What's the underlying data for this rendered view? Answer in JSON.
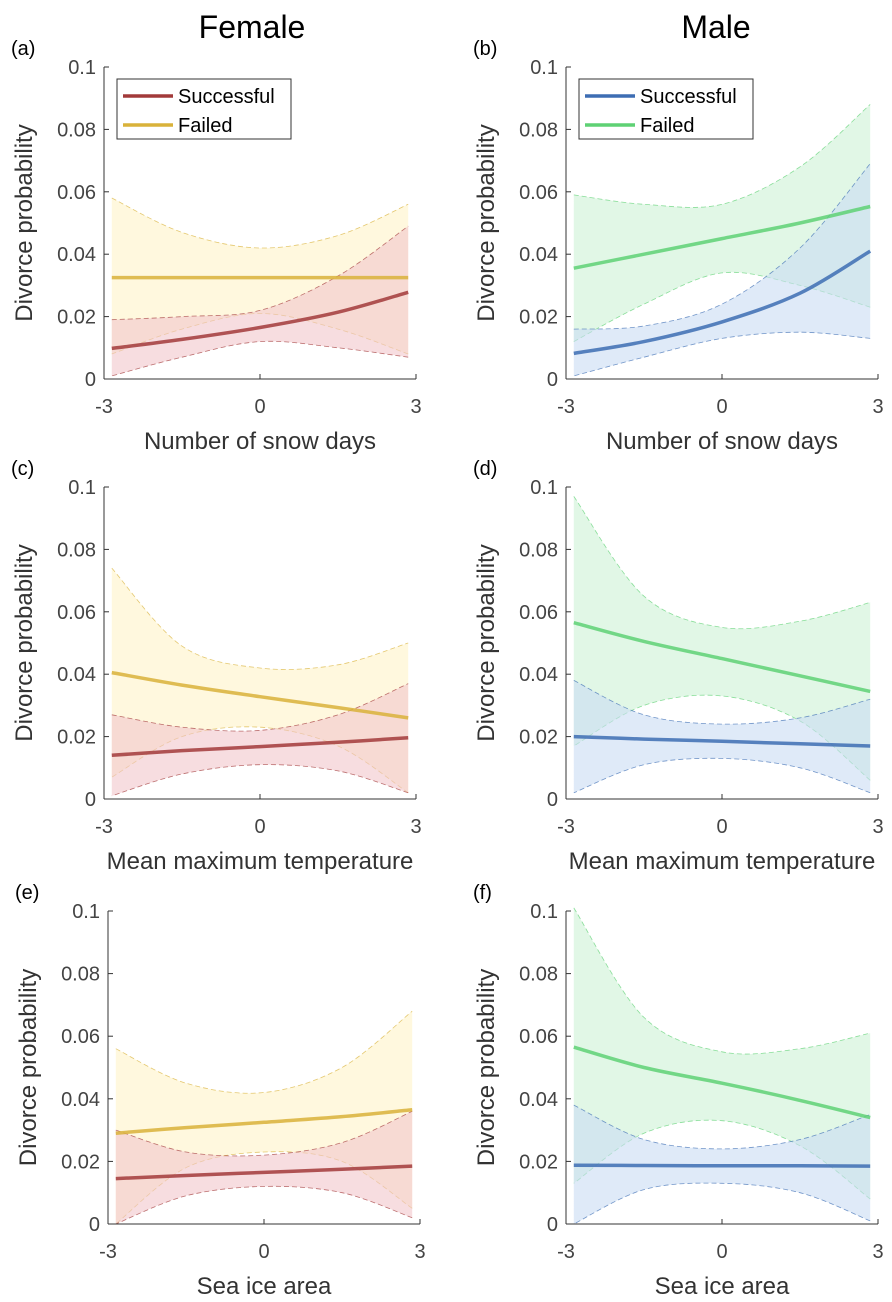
{
  "column_titles": [
    "Female",
    "Male"
  ],
  "colors": {
    "female_successful": "#a23a3a",
    "female_failed": "#d9b23a",
    "male_successful": "#3d6db3",
    "male_failed": "#5ed174",
    "female_successful_band": "#f2c6cc",
    "female_failed_band": "#fff3c8",
    "male_successful_band": "#c9dcf3",
    "male_failed_band": "#cdf2d5"
  },
  "chart_data": [
    {
      "panel": "(a)",
      "type": "line",
      "xlabel": "Number of snow days",
      "ylabel": "Divorce probability",
      "xlim": [
        -3,
        3
      ],
      "ylim": [
        0,
        0.1
      ],
      "xticks": [
        "-3",
        "0",
        "3"
      ],
      "yticks": [
        "0",
        "0.02",
        "0.04",
        "0.06",
        "0.08",
        "0.1"
      ],
      "legend": [
        "Successful",
        "Failed"
      ],
      "series": [
        {
          "name": "Successful",
          "x": [
            -2.85,
            -1.5,
            0,
            1.5,
            2.85
          ],
          "y": [
            0.0098,
            0.0127,
            0.0165,
            0.0214,
            0.0278
          ],
          "lower": [
            0.001,
            0.007,
            0.012,
            0.01,
            0.007
          ],
          "upper": [
            0.019,
            0.02,
            0.022,
            0.033,
            0.049
          ]
        },
        {
          "name": "Failed",
          "x": [
            -2.85,
            -1.5,
            0,
            1.5,
            2.85
          ],
          "y": [
            0.0325,
            0.0325,
            0.0325,
            0.0325,
            0.0325
          ],
          "lower": [
            0.008,
            0.016,
            0.021,
            0.016,
            0.008
          ],
          "upper": [
            0.058,
            0.047,
            0.042,
            0.046,
            0.056
          ]
        }
      ]
    },
    {
      "panel": "(b)",
      "type": "line",
      "xlabel": "Number of snow days",
      "ylabel": "Divorce probability",
      "xlim": [
        -3,
        3
      ],
      "ylim": [
        0,
        0.1
      ],
      "xticks": [
        "-3",
        "0",
        "3"
      ],
      "yticks": [
        "0",
        "0.02",
        "0.04",
        "0.06",
        "0.08",
        "0.1"
      ],
      "legend": [
        "Successful",
        "Failed"
      ],
      "series": [
        {
          "name": "Successful",
          "x": [
            -2.85,
            -1.5,
            0,
            1.5,
            2.85
          ],
          "y": [
            0.0082,
            0.012,
            0.0183,
            0.0275,
            0.041
          ],
          "lower": [
            0.001,
            0.007,
            0.013,
            0.015,
            0.013
          ],
          "upper": [
            0.016,
            0.017,
            0.024,
            0.042,
            0.069
          ]
        },
        {
          "name": "Failed",
          "x": [
            -2.85,
            -1.5,
            0,
            1.5,
            2.85
          ],
          "y": [
            0.0355,
            0.04,
            0.045,
            0.05,
            0.0553
          ],
          "lower": [
            0.012,
            0.024,
            0.034,
            0.03,
            0.023
          ],
          "upper": [
            0.059,
            0.056,
            0.056,
            0.068,
            0.088
          ]
        }
      ]
    },
    {
      "panel": "(c)",
      "type": "line",
      "xlabel": "Mean maximum temperature",
      "ylabel": "Divorce probability",
      "xlim": [
        -3,
        3
      ],
      "ylim": [
        0,
        0.1
      ],
      "xticks": [
        "-3",
        "0",
        "3"
      ],
      "yticks": [
        "0",
        "0.02",
        "0.04",
        "0.06",
        "0.08",
        "0.1"
      ],
      "series": [
        {
          "name": "Successful",
          "x": [
            -2.85,
            -1.5,
            0,
            1.5,
            2.85
          ],
          "y": [
            0.014,
            0.0155,
            0.0168,
            0.0182,
            0.0196
          ],
          "lower": [
            0.001,
            0.008,
            0.011,
            0.009,
            0.002
          ],
          "upper": [
            0.027,
            0.023,
            0.022,
            0.027,
            0.037
          ]
        },
        {
          "name": "Failed",
          "x": [
            -2.85,
            -1.5,
            0,
            1.5,
            2.85
          ],
          "y": [
            0.0405,
            0.0365,
            0.0328,
            0.0293,
            0.026
          ],
          "lower": [
            0.007,
            0.02,
            0.023,
            0.017,
            0.002
          ],
          "upper": [
            0.074,
            0.049,
            0.042,
            0.043,
            0.05
          ]
        }
      ]
    },
    {
      "panel": "(d)",
      "type": "line",
      "xlabel": "Mean maximum temperature",
      "ylabel": "Divorce probability",
      "xlim": [
        -3,
        3
      ],
      "ylim": [
        0,
        0.1
      ],
      "xticks": [
        "-3",
        "0",
        "3"
      ],
      "yticks": [
        "0",
        "0.02",
        "0.04",
        "0.06",
        "0.08",
        "0.1"
      ],
      "series": [
        {
          "name": "Successful",
          "x": [
            -2.85,
            -1.5,
            0,
            1.5,
            2.85
          ],
          "y": [
            0.02,
            0.0192,
            0.0185,
            0.0177,
            0.017
          ],
          "lower": [
            0.002,
            0.011,
            0.013,
            0.01,
            0.002
          ],
          "upper": [
            0.038,
            0.027,
            0.024,
            0.026,
            0.032
          ]
        },
        {
          "name": "Failed",
          "x": [
            -2.85,
            -1.5,
            0,
            1.5,
            2.85
          ],
          "y": [
            0.0565,
            0.0505,
            0.045,
            0.0395,
            0.0345
          ],
          "lower": [
            0.017,
            0.03,
            0.033,
            0.025,
            0.006
          ],
          "upper": [
            0.097,
            0.065,
            0.055,
            0.057,
            0.063
          ]
        }
      ]
    },
    {
      "panel": "(e)",
      "type": "line",
      "xlabel": "Sea ice area",
      "ylabel": "Divorce probability",
      "xlim": [
        -3,
        3
      ],
      "ylim": [
        0,
        0.1
      ],
      "xticks": [
        "-3",
        "0",
        "3"
      ],
      "yticks": [
        "0",
        "0.02",
        "0.04",
        "0.06",
        "0.08",
        "0.1"
      ],
      "series": [
        {
          "name": "Successful",
          "x": [
            -2.85,
            -1.5,
            0,
            1.5,
            2.85
          ],
          "y": [
            0.0145,
            0.0155,
            0.0165,
            0.0175,
            0.0185
          ],
          "lower": [
            0.0,
            0.009,
            0.012,
            0.01,
            0.002
          ],
          "upper": [
            0.03,
            0.023,
            0.022,
            0.026,
            0.036
          ]
        },
        {
          "name": "Failed",
          "x": [
            -2.85,
            -1.5,
            0,
            1.5,
            2.85
          ],
          "y": [
            0.029,
            0.0308,
            0.0325,
            0.0343,
            0.0365
          ],
          "lower": [
            0.0,
            0.018,
            0.023,
            0.02,
            0.005
          ],
          "upper": [
            0.056,
            0.045,
            0.042,
            0.05,
            0.068
          ]
        }
      ]
    },
    {
      "panel": "(f)",
      "type": "line",
      "xlabel": "Sea ice area",
      "ylabel": "Divorce probability",
      "xlim": [
        -3,
        3
      ],
      "ylim": [
        0,
        0.1
      ],
      "xticks": [
        "-3",
        "0",
        "3"
      ],
      "yticks": [
        "0",
        "0.02",
        "0.04",
        "0.06",
        "0.08",
        "0.1"
      ],
      "series": [
        {
          "name": "Successful",
          "x": [
            -2.85,
            -1.5,
            0,
            1.5,
            2.85
          ],
          "y": [
            0.0188,
            0.0187,
            0.0186,
            0.0186,
            0.0185
          ],
          "lower": [
            0.0,
            0.011,
            0.013,
            0.01,
            0.001
          ],
          "upper": [
            0.038,
            0.027,
            0.024,
            0.027,
            0.035
          ]
        },
        {
          "name": "Failed",
          "x": [
            -2.85,
            -1.5,
            0,
            1.5,
            2.85
          ],
          "y": [
            0.0565,
            0.05,
            0.045,
            0.0395,
            0.034
          ],
          "lower": [
            0.013,
            0.029,
            0.033,
            0.025,
            0.008
          ],
          "upper": [
            0.101,
            0.066,
            0.055,
            0.056,
            0.061
          ]
        }
      ]
    }
  ]
}
